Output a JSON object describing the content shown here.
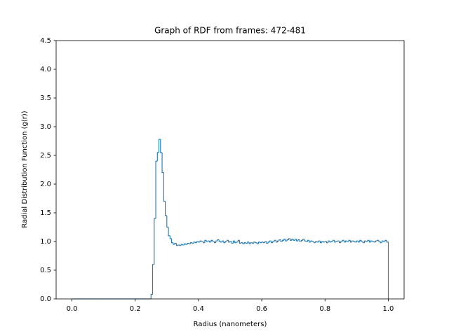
{
  "chart_data": {
    "type": "histogram",
    "title": "Graph of RDF from frames: 472-481",
    "x_label": "Radius (nanometers)",
    "y_label": "Radial Distribution Function (g(r))",
    "color": "#1f77b4",
    "grid": false,
    "xlim": [
      -0.05,
      1.05
    ],
    "ylim": [
      0,
      4.5
    ],
    "xticks": [
      {
        "value": 0,
        "label": "0.0"
      },
      0.2,
      0.4,
      0.6,
      0.8,
      {
        "value": 1,
        "label": "1.0"
      }
    ],
    "yticks": [
      {
        "value": 0,
        "label": "0.0"
      },
      0.5,
      {
        "value": 1,
        "label": "1.0"
      },
      1.5,
      {
        "value": 2,
        "label": "2.0"
      },
      2.5,
      {
        "value": 3,
        "label": "3.0"
      },
      3.5,
      {
        "value": 4,
        "label": "4.0"
      },
      4.5
    ],
    "bins": [
      0,
      0.005,
      0.01,
      0.015,
      0.02,
      0.025,
      0.03,
      0.035,
      0.04,
      0.045,
      0.05,
      0.055,
      0.06,
      0.065,
      0.07,
      0.075,
      0.08,
      0.085,
      0.09,
      0.095,
      0.1,
      0.105,
      0.11,
      0.115,
      0.12,
      0.125,
      0.13,
      0.135,
      0.14,
      0.145,
      0.15,
      0.155,
      0.16,
      0.165,
      0.17,
      0.175,
      0.18,
      0.185,
      0.19,
      0.195,
      0.2,
      0.205,
      0.21,
      0.215,
      0.22,
      0.225,
      0.23,
      0.235,
      0.24,
      0.245,
      0.25,
      0.255,
      0.26,
      0.265,
      0.27,
      0.275,
      0.28,
      0.285,
      0.29,
      0.295,
      0.3,
      0.305,
      0.31,
      0.315,
      0.32,
      0.325,
      0.33,
      0.335,
      0.34,
      0.345,
      0.35,
      0.355,
      0.36,
      0.365,
      0.37,
      0.375,
      0.38,
      0.385,
      0.39,
      0.395,
      0.4,
      0.405,
      0.41,
      0.415,
      0.42,
      0.425,
      0.43,
      0.435,
      0.44,
      0.445,
      0.45,
      0.455,
      0.46,
      0.465,
      0.47,
      0.475,
      0.48,
      0.485,
      0.49,
      0.495,
      0.5,
      0.505,
      0.51,
      0.515,
      0.52,
      0.525,
      0.53,
      0.535,
      0.54,
      0.545,
      0.55,
      0.555,
      0.56,
      0.565,
      0.57,
      0.575,
      0.58,
      0.585,
      0.59,
      0.595,
      0.6,
      0.605,
      0.61,
      0.615,
      0.62,
      0.625,
      0.63,
      0.635,
      0.64,
      0.645,
      0.65,
      0.655,
      0.66,
      0.665,
      0.67,
      0.675,
      0.68,
      0.685,
      0.69,
      0.695,
      0.7,
      0.705,
      0.71,
      0.715,
      0.72,
      0.725,
      0.73,
      0.735,
      0.74,
      0.745,
      0.75,
      0.755,
      0.76,
      0.765,
      0.77,
      0.775,
      0.78,
      0.785,
      0.79,
      0.795,
      0.8,
      0.805,
      0.81,
      0.815,
      0.82,
      0.825,
      0.83,
      0.835,
      0.84,
      0.845,
      0.85,
      0.855,
      0.86,
      0.865,
      0.87,
      0.875,
      0.88,
      0.885,
      0.89,
      0.895,
      0.9,
      0.905,
      0.91,
      0.915,
      0.92,
      0.925,
      0.93,
      0.935,
      0.94,
      0.945,
      0.95,
      0.955,
      0.96,
      0.965,
      0.97,
      0.975,
      0.98,
      0.985,
      0.99,
      0.995,
      1
    ],
    "counts": [
      0,
      0,
      0,
      0,
      0,
      0,
      0,
      0,
      0,
      0,
      0,
      0,
      0,
      0,
      0,
      0,
      0,
      0,
      0,
      0,
      0,
      0,
      0,
      0,
      0,
      0,
      0,
      0,
      0,
      0,
      0,
      0,
      0,
      0,
      0,
      0,
      0,
      0,
      0,
      0,
      0,
      0,
      0,
      0,
      0,
      0,
      0,
      0,
      0,
      0,
      0.08,
      0.6,
      1.4,
      2.4,
      2.55,
      2.78,
      2.55,
      2.2,
      1.7,
      1.45,
      1.25,
      1.1,
      1.05,
      0.98,
      0.95,
      0.97,
      0.93,
      0.94,
      0.93,
      0.95,
      0.94,
      0.96,
      0.95,
      0.97,
      0.96,
      0.98,
      0.97,
      0.99,
      0.98,
      1.0,
      0.99,
      1.01,
      1.0,
      0.98,
      1.02,
      1.0,
      1.01,
      0.99,
      1.02,
      1.0,
      0.98,
      1.01,
      1.03,
      1.0,
      0.99,
      1.01,
      0.98,
      1.0,
      1.02,
      0.99,
      1.0,
      0.97,
      1.01,
      0.98,
      0.99,
      1.02,
      0.97,
      0.98,
      0.96,
      0.98,
      0.97,
      0.99,
      0.96,
      0.98,
      0.97,
      0.99,
      0.98,
      0.96,
      0.99,
      0.98,
      0.99,
      0.98,
      1.0,
      0.97,
      0.99,
      1.01,
      0.98,
      1.0,
      1.02,
      0.99,
      1.01,
      1.03,
      1.0,
      1.02,
      1.04,
      1.01,
      1.03,
      1.05,
      1.02,
      1.04,
      1.02,
      1.04,
      1.01,
      1.03,
      1.0,
      1.02,
      1.04,
      1.01,
      1.0,
      1.02,
      0.99,
      1.01,
      1.0,
      0.98,
      1.0,
      0.99,
      1.01,
      0.98,
      1.0,
      0.99,
      1.0,
      0.98,
      1.01,
      0.99,
      1.0,
      1.02,
      0.99,
      1.0,
      1.01,
      0.98,
      1.0,
      1.02,
      0.99,
      1.01,
      1.0,
      1.02,
      0.99,
      1.01,
      1.0,
      0.99,
      1.01,
      0.99,
      1.02,
      1.0,
      0.98,
      1.01,
      1.0,
      1.02,
      0.99,
      1.01,
      1.0,
      0.99,
      1.01,
      1.02,
      1.0,
      0.98,
      1.01,
      1.0,
      1.02,
      0.99
    ]
  }
}
